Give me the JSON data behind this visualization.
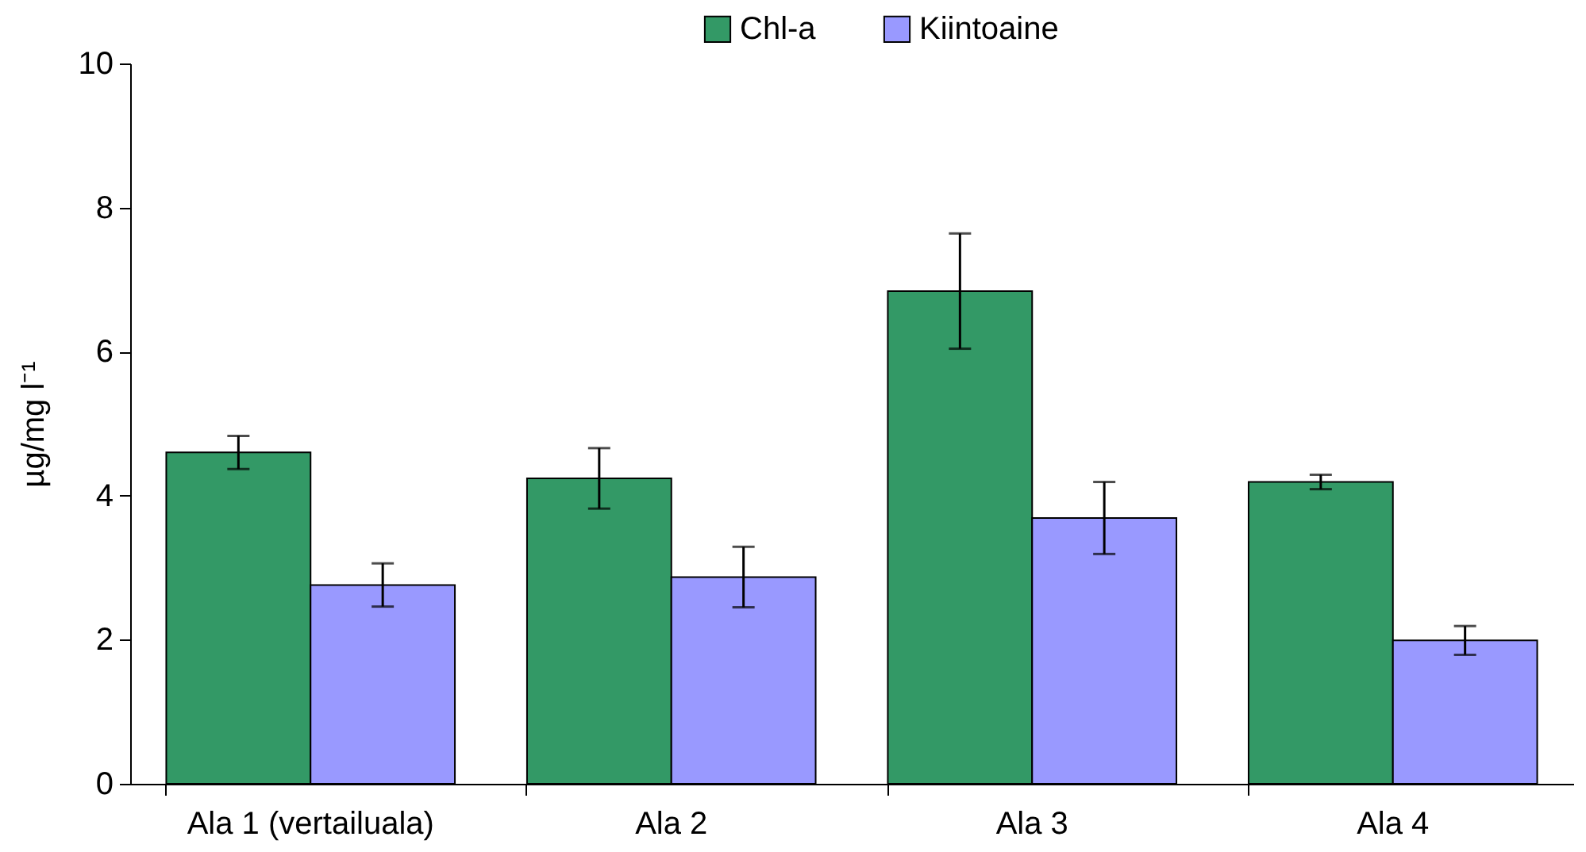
{
  "chart_data": {
    "type": "bar",
    "ylabel": "µg/mg l⁻¹",
    "categories": [
      "Ala 1 (vertailuala)",
      "Ala 2",
      "Ala 3",
      "Ala 4"
    ],
    "series": [
      {
        "name": "Chl-a",
        "color": "#339966",
        "values": [
          4.6,
          4.24,
          6.84,
          4.19
        ],
        "errors": [
          0.23,
          0.42,
          0.8,
          0.1
        ]
      },
      {
        "name": "Kiintoaine",
        "color": "#9999ff",
        "values": [
          2.76,
          2.87,
          3.69,
          1.99
        ],
        "errors": [
          0.3,
          0.42,
          0.5,
          0.2
        ]
      }
    ],
    "ylim": [
      0,
      10
    ],
    "yticks": [
      0,
      2,
      4,
      6,
      8,
      10
    ],
    "grid": false,
    "legend": "top"
  }
}
